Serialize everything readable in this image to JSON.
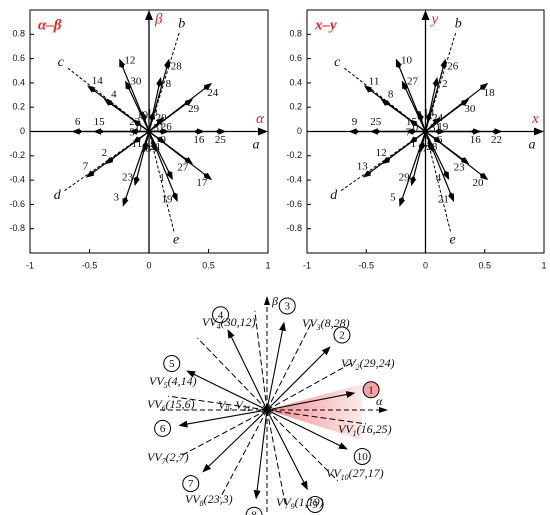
{
  "chart_data": [
    {
      "type": "vector",
      "title": "α–β",
      "x_label": "α",
      "y_label": "β",
      "color": "#000000",
      "xlim": [
        -1,
        1
      ],
      "ylim": [
        -1,
        1
      ],
      "xticks": [
        -1,
        -0.5,
        0,
        0.5,
        1
      ],
      "yticks": [
        -0.8,
        -0.6,
        -0.4,
        -0.2,
        0,
        0.2,
        0.4,
        0.6,
        0.8
      ],
      "direction_labels": [
        "a",
        "b",
        "c",
        "d",
        "e"
      ],
      "vector_labels": [
        "25",
        "24",
        "28",
        "12",
        "14",
        "6",
        "7",
        "3",
        "19",
        "17",
        "16",
        "29",
        "8",
        "30",
        "4",
        "15",
        "2",
        "23",
        "1",
        "27",
        "9",
        "26",
        "20",
        "13",
        "10",
        "22",
        "5",
        "11",
        "18",
        "21",
        "0",
        "31"
      ],
      "x": [
        0.65,
        0.53,
        0.17,
        -0.25,
        -0.52,
        -0.65,
        -0.53,
        -0.22,
        0.24,
        0.53,
        0.47,
        0.37,
        0.1,
        -0.2,
        -0.38,
        -0.47,
        -0.37,
        -0.12,
        0.2,
        0.37,
        0.17,
        0.13,
        0.04,
        -0.06,
        -0.14,
        -0.17,
        -0.14,
        -0.04,
        0.06,
        0.14,
        0,
        0
      ],
      "values": [
        0,
        0.4,
        0.6,
        0.6,
        0.38,
        0,
        -0.38,
        -0.62,
        -0.58,
        -0.4,
        0,
        0.27,
        0.45,
        0.42,
        0.27,
        0,
        -0.27,
        -0.45,
        -0.4,
        -0.27,
        0,
        0.12,
        0.17,
        0.17,
        0.1,
        0,
        -0.1,
        -0.17,
        -0.17,
        -0.1,
        0,
        0
      ]
    },
    {
      "type": "vector",
      "title": "x–y",
      "x_label": "x",
      "y_label": "y",
      "color": "#000000",
      "xlim": [
        -1,
        1
      ],
      "ylim": [
        -1,
        1
      ],
      "xticks": [
        -1,
        -0.5,
        0,
        0.5,
        1
      ],
      "yticks": [
        -0.8,
        -0.6,
        -0.4,
        -0.2,
        0,
        0.2,
        0.4,
        0.6,
        0.8
      ],
      "direction_labels": [
        "a",
        "b",
        "c",
        "d",
        "e"
      ],
      "vector_labels": [
        "22",
        "18",
        "26",
        "10",
        "11",
        "9",
        "13",
        "5",
        "21",
        "20",
        "16",
        "30",
        "2",
        "27",
        "8",
        "25",
        "12",
        "29",
        "4",
        "23",
        "6",
        "19",
        "24",
        "14",
        "3",
        "15",
        "7",
        "1",
        "17",
        "28",
        "0",
        "31"
      ],
      "x": [
        0.65,
        0.53,
        0.17,
        -0.25,
        -0.52,
        -0.65,
        -0.53,
        -0.22,
        0.24,
        0.53,
        0.47,
        0.37,
        0.1,
        -0.2,
        -0.38,
        -0.47,
        -0.37,
        -0.12,
        0.2,
        0.37,
        0.17,
        0.13,
        0.04,
        -0.06,
        -0.14,
        -0.17,
        -0.14,
        -0.04,
        0.06,
        0.14,
        0,
        0
      ],
      "values": [
        0,
        0.4,
        0.6,
        0.6,
        0.38,
        0,
        -0.38,
        -0.62,
        -0.58,
        -0.4,
        0,
        0.27,
        0.45,
        0.42,
        0.27,
        0,
        -0.27,
        -0.45,
        -0.4,
        -0.27,
        0,
        0.12,
        0.17,
        0.17,
        0.1,
        0,
        -0.1,
        -0.17,
        -0.17,
        -0.1,
        0,
        0
      ]
    }
  ],
  "diagram": {
    "axis_labels": {
      "vertical": "β",
      "horizontal": "α"
    },
    "zero_label": {
      "separator": ", ",
      "parts": [
        {
          "base": "V",
          "sub": "0"
        },
        {
          "base": "V",
          "sub": "31"
        }
      ]
    },
    "virtual_vectors": [
      {
        "base": "VV",
        "sub": "1",
        "pair": "(16,25)",
        "circle": "1"
      },
      {
        "base": "VV",
        "sub": "2",
        "pair": "(29,24)",
        "circle": "2"
      },
      {
        "base": "VV",
        "sub": "3",
        "pair": "(8,28)",
        "circle": "3"
      },
      {
        "base": "VV",
        "sub": "4",
        "pair": "(30,12)",
        "circle": "4"
      },
      {
        "base": "VV",
        "sub": "5",
        "pair": "(4,14)",
        "circle": "5"
      },
      {
        "base": "VV",
        "sub": "6",
        "pair": "(15,6)",
        "circle": "6"
      },
      {
        "base": "VV",
        "sub": "7",
        "pair": "(2,7)",
        "circle": "7"
      },
      {
        "base": "VV",
        "sub": "8",
        "pair": "(23,3)",
        "circle": "8"
      },
      {
        "base": "VV",
        "sub": "9",
        "pair": "(1,19)",
        "circle": "9"
      },
      {
        "base": "VV",
        "sub": "10",
        "pair": "(27,17)",
        "circle": "10"
      }
    ]
  }
}
